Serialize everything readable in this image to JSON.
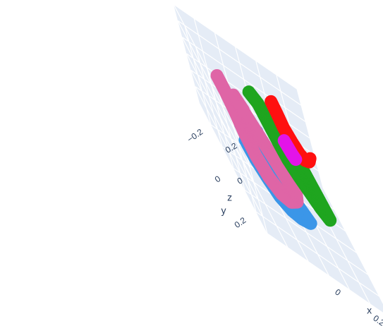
{
  "chart_data": {
    "type": "scatter3d",
    "axes": {
      "x": {
        "title": "x",
        "range": [
          -0.3,
          0.3
        ],
        "ticks": [
          {
            "value": 0,
            "label": "0"
          },
          {
            "value": 0.2,
            "label": "0.2"
          }
        ]
      },
      "y": {
        "title": "y",
        "range": [
          -0.3,
          0.3
        ],
        "ticks": [
          {
            "value": -0.2,
            "label": "−0.2"
          },
          {
            "value": 0,
            "label": "0"
          },
          {
            "value": 0.2,
            "label": "0.2"
          }
        ]
      },
      "z": {
        "title": "z",
        "range": [
          -0.3,
          0.3
        ],
        "ticks": [
          {
            "value": 0,
            "label": "0"
          },
          {
            "value": 0.2,
            "label": "0.2"
          }
        ]
      }
    },
    "grid": true,
    "legend": "none",
    "scene_background": "#e5ecf6",
    "series": [
      {
        "color": "#1f77b4",
        "display_color": "#3b96e8",
        "points": [
          [
            -0.18,
            -0.02,
            -0.05
          ],
          [
            -0.16,
            0.02,
            -0.1
          ],
          [
            -0.13,
            0.06,
            -0.14
          ],
          [
            -0.1,
            0.1,
            -0.17
          ],
          [
            -0.06,
            0.13,
            -0.18
          ],
          [
            -0.02,
            0.15,
            -0.17
          ],
          [
            0.02,
            0.16,
            -0.15
          ],
          [
            -0.17,
            -0.06,
            0.0
          ],
          [
            -0.15,
            -0.05,
            0.04
          ],
          [
            -0.12,
            -0.05,
            0.06
          ],
          [
            -0.09,
            -0.04,
            0.05
          ]
        ]
      },
      {
        "color": "#e377c2",
        "display_color": "#df65a6",
        "points": [
          [
            -0.22,
            -0.1,
            0.2
          ],
          [
            -0.21,
            -0.05,
            0.17
          ],
          [
            -0.2,
            -0.01,
            0.12
          ],
          [
            -0.19,
            0.03,
            0.05
          ],
          [
            -0.17,
            0.07,
            -0.02
          ],
          [
            -0.14,
            0.11,
            -0.07
          ],
          [
            -0.1,
            0.14,
            -0.1
          ],
          [
            -0.06,
            0.16,
            -0.09
          ],
          [
            -0.03,
            0.17,
            -0.05
          ],
          [
            -0.02,
            0.16,
            -0.01
          ],
          [
            -0.16,
            -0.08,
            0.16
          ],
          [
            -0.13,
            -0.06,
            0.12
          ]
        ]
      },
      {
        "color": "#2ca02c",
        "display_color": "#1fa51f",
        "points": [
          [
            -0.05,
            -0.12,
            0.22
          ],
          [
            -0.02,
            -0.1,
            0.2
          ],
          [
            0.0,
            -0.07,
            0.14
          ],
          [
            0.02,
            -0.04,
            0.08
          ],
          [
            0.04,
            -0.01,
            0.03
          ],
          [
            0.07,
            0.02,
            -0.01
          ],
          [
            0.1,
            0.05,
            -0.04
          ],
          [
            0.13,
            0.08,
            -0.07
          ],
          [
            0.16,
            0.1,
            -0.09
          ],
          [
            0.08,
            -0.08,
            0.12
          ],
          [
            0.05,
            -0.07,
            0.16
          ]
        ]
      },
      {
        "color": "#d62728",
        "display_color": "#ff1010",
        "points": [
          [
            0.08,
            -0.16,
            0.22
          ],
          [
            0.09,
            -0.14,
            0.18
          ],
          [
            0.1,
            -0.12,
            0.13
          ],
          [
            0.12,
            -0.1,
            0.09
          ],
          [
            0.14,
            -0.08,
            0.06
          ],
          [
            0.16,
            -0.07,
            0.05
          ],
          [
            0.18,
            -0.06,
            0.07
          ],
          [
            0.19,
            -0.06,
            0.1
          ]
        ]
      },
      {
        "color": "#ee00ee",
        "display_color": "#e314e8",
        "points": [
          [
            0.07,
            -0.08,
            0.08
          ],
          [
            0.08,
            -0.07,
            0.06
          ],
          [
            0.09,
            -0.06,
            0.04
          ],
          [
            0.1,
            -0.05,
            0.03
          ]
        ]
      }
    ]
  }
}
